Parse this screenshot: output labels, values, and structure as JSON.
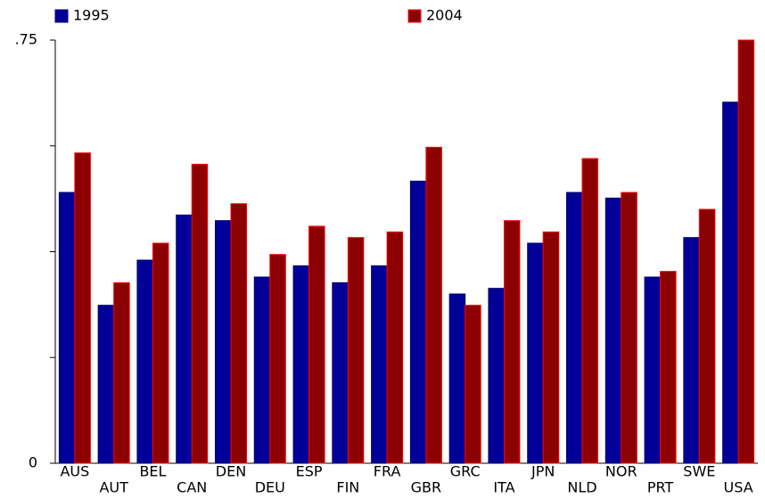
{
  "chart_data": {
    "type": "bar",
    "categories": [
      "AUS",
      "AUT",
      "BEL",
      "CAN",
      "DEN",
      "DEU",
      "ESP",
      "FIN",
      "FRA",
      "GBR",
      "GRC",
      "ITA",
      "JPN",
      "NLD",
      "NOR",
      "PRT",
      "SWE",
      "USA"
    ],
    "series": [
      {
        "name": "1995",
        "color": "#000099",
        "values": [
          0.48,
          0.28,
          0.36,
          0.44,
          0.43,
          0.33,
          0.35,
          0.32,
          0.35,
          0.5,
          0.3,
          0.31,
          0.39,
          0.48,
          0.47,
          0.33,
          0.4,
          0.64
        ]
      },
      {
        "name": "2004",
        "color": "#8b0000",
        "values": [
          0.55,
          0.32,
          0.39,
          0.53,
          0.46,
          0.37,
          0.42,
          0.4,
          0.41,
          0.56,
          0.28,
          0.43,
          0.41,
          0.54,
          0.48,
          0.34,
          0.45,
          0.75
        ]
      }
    ],
    "ylim": [
      0,
      0.75
    ],
    "yticks": [
      0,
      {
        "value": 0.75,
        "label": ".75"
      }
    ],
    "yminorticks": [
      0.1875,
      0.375,
      0.5625
    ]
  }
}
